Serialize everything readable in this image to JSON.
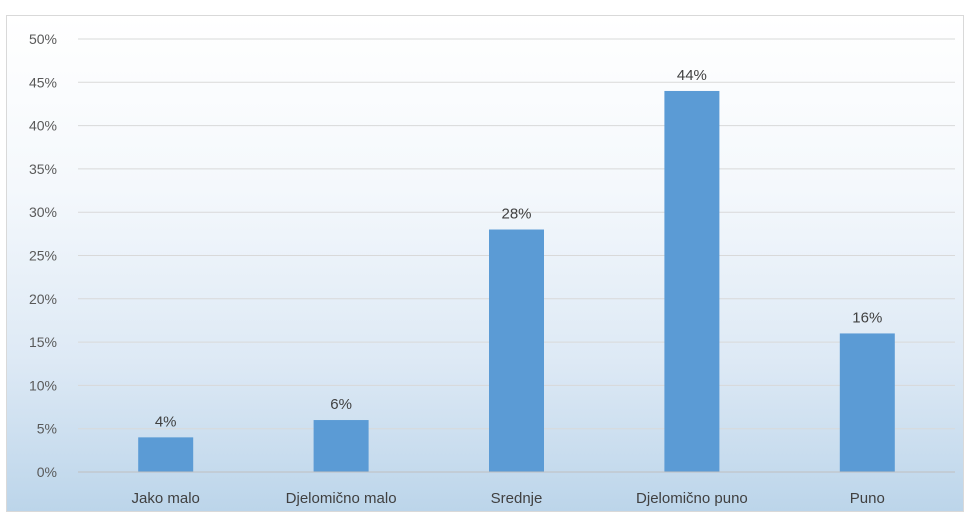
{
  "chart_data": {
    "type": "bar",
    "categories": [
      "Jako malo",
      "Djelomično malo",
      "Srednje",
      "Djelomično puno",
      "Puno"
    ],
    "values": [
      4,
      6,
      28,
      44,
      16
    ],
    "data_labels": [
      "4%",
      "6%",
      "28%",
      "44%",
      "16%"
    ],
    "y_ticks": [
      "0%",
      "5%",
      "10%",
      "15%",
      "20%",
      "25%",
      "30%",
      "35%",
      "40%",
      "45%",
      "50%"
    ],
    "ylim": [
      0,
      50
    ],
    "grid": true,
    "legend": "none",
    "bar_color": "#5b9bd5",
    "title": "",
    "xlabel": "",
    "ylabel": ""
  }
}
